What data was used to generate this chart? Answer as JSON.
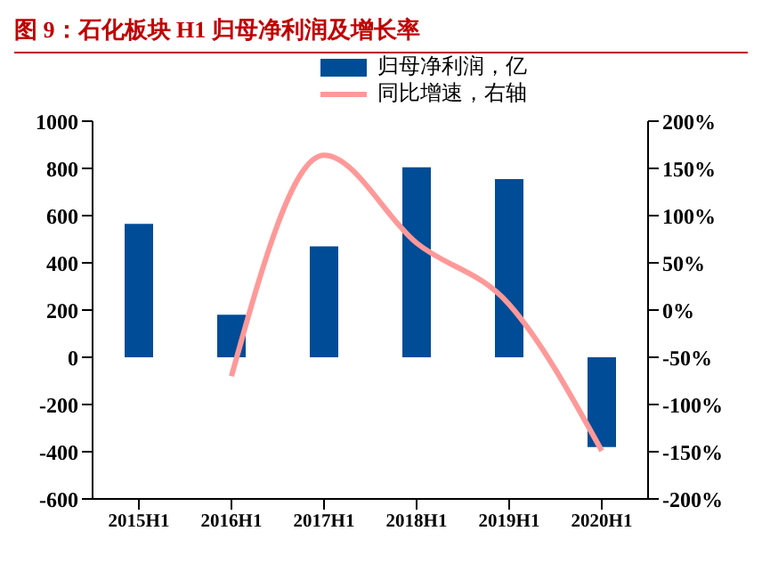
{
  "chart_data": {
    "type": "bar",
    "title": "图 9：石化板块 H1 归母净利润及增长率",
    "categories": [
      "2015H1",
      "2016H1",
      "2017H1",
      "2018H1",
      "2019H1",
      "2020H1"
    ],
    "series": [
      {
        "name": "归母净利润，亿",
        "color": "#004c97",
        "values": [
          565,
          180,
          470,
          805,
          755,
          -380
        ]
      },
      {
        "name": "同比增速，右轴",
        "type": "line",
        "axis": "y2",
        "color": "#ff9999",
        "values": [
          null,
          -70,
          164,
          71,
          6,
          -149
        ]
      }
    ],
    "ylim": [
      -600,
      1000
    ],
    "yticks": [
      -600,
      -400,
      -200,
      0,
      200,
      400,
      600,
      800,
      1000
    ],
    "y2lim": [
      -200,
      200
    ],
    "y2ticks": [
      {
        "value": -200,
        "label": "-200%"
      },
      {
        "value": -150,
        "label": "-150%"
      },
      {
        "value": -100,
        "label": "-100%"
      },
      {
        "value": -50,
        "label": "-50%"
      },
      {
        "value": 0,
        "label": "0%"
      },
      {
        "value": 50,
        "label": "50%"
      },
      {
        "value": 100,
        "label": "100%"
      },
      {
        "value": 150,
        "label": "150%"
      },
      {
        "value": 200,
        "label": "200%"
      }
    ],
    "grid": false,
    "legend": "top right",
    "marker": "none"
  }
}
